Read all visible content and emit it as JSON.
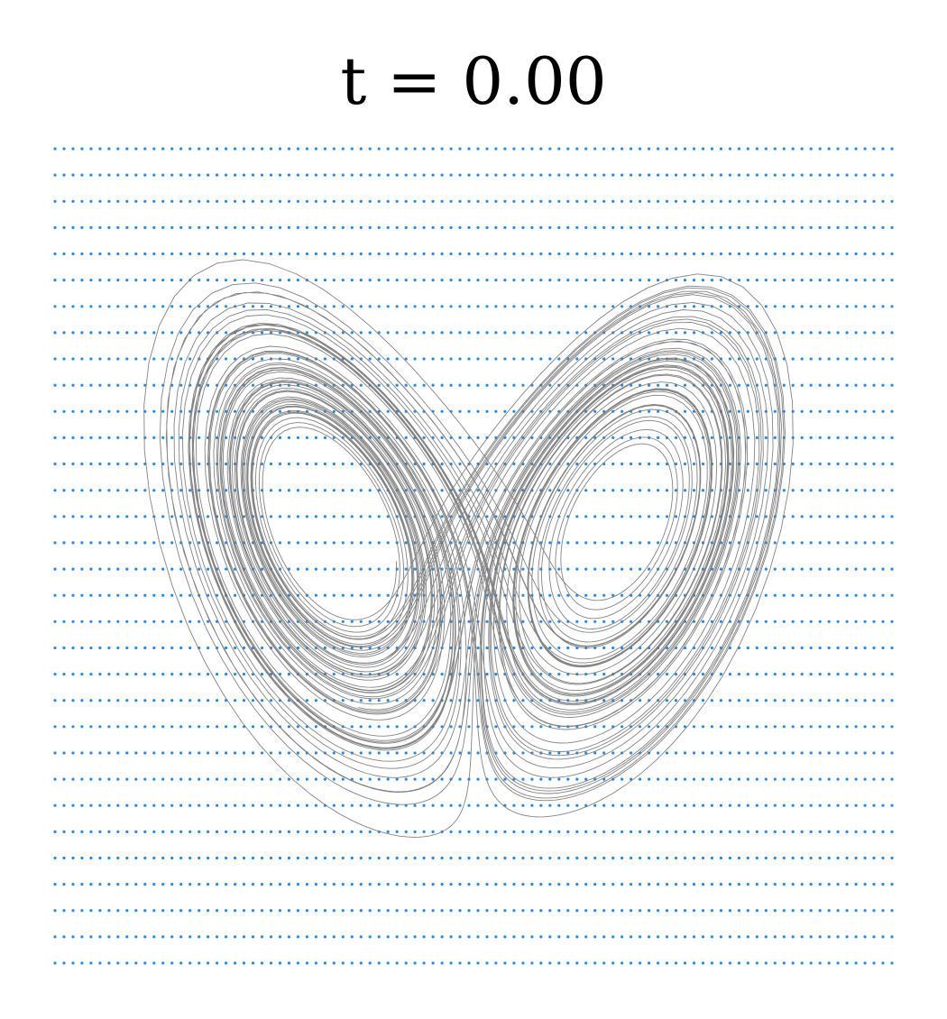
{
  "title": "t = 0.00"
}
